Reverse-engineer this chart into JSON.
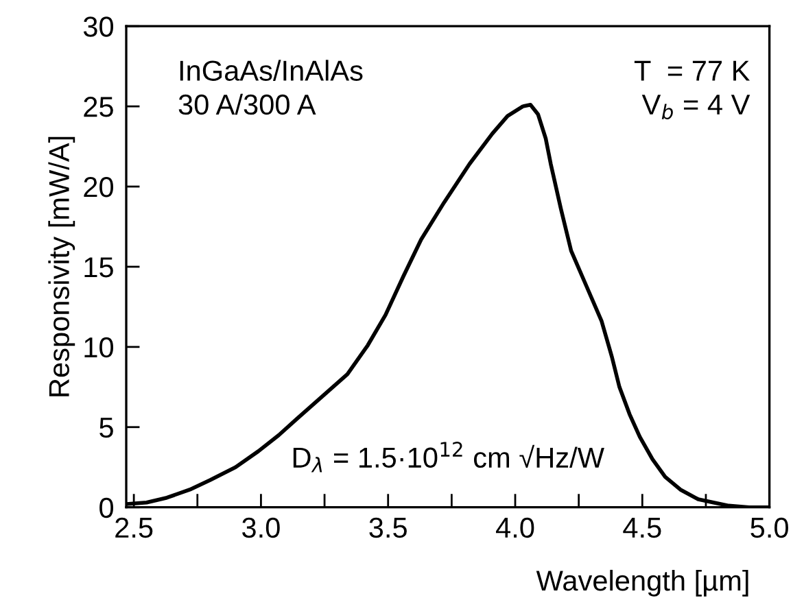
{
  "chart_data": {
    "type": "line",
    "xlabel": "Wavelength [µm]",
    "ylabel": "Responsivity [mW/A]",
    "annotations": [
      "InGaAs/InAlAs\n30 A/300 A",
      "T  = 77 K\nV$_{b}$ = 4 V",
      "D$_{λ}$ = 1.5·10$^{12}$ cm √Hz/W"
    ],
    "xlim": [
      2.47,
      5.0
    ],
    "ylim": [
      0,
      30
    ],
    "xticks": [
      2.5,
      {
        "value": 2.75,
        "label": null
      },
      {
        "value": 3,
        "label": "3.0"
      },
      {
        "value": 3.25,
        "label": null
      },
      3.5,
      {
        "value": 3.75,
        "label": null
      },
      {
        "value": 4,
        "label": "4.0"
      },
      {
        "value": 4.25,
        "label": null
      },
      4.5,
      {
        "value": 4.75,
        "label": null
      },
      {
        "value": 5,
        "label": "5.0"
      }
    ],
    "yticks": [
      0,
      5,
      10,
      15,
      20,
      25,
      30
    ],
    "grid": false,
    "legend": false,
    "marker": "none",
    "line_style": "solid",
    "series": [
      {
        "color": "#000000",
        "x": [
          2.47,
          2.55,
          2.63,
          2.72,
          2.8,
          2.9,
          2.99,
          3.07,
          3.14,
          3.24,
          3.34,
          3.42,
          3.49,
          3.56,
          3.63,
          3.72,
          3.82,
          3.91,
          3.97,
          4.03,
          4.06,
          4.09,
          4.12,
          4.14,
          4.18,
          4.22,
          4.28,
          4.34,
          4.38,
          4.41,
          4.45,
          4.49,
          4.54,
          4.59,
          4.65,
          4.72,
          4.78,
          4.84,
          4.92,
          4.99
        ],
        "values": [
          0.2,
          0.3,
          0.6,
          1.1,
          1.7,
          2.5,
          3.5,
          4.5,
          5.5,
          6.9,
          8.3,
          10.1,
          12.0,
          14.4,
          16.7,
          19.0,
          21.4,
          23.3,
          24.4,
          25.0,
          25.1,
          24.5,
          23.0,
          21.4,
          18.6,
          16.0,
          13.8,
          11.6,
          9.4,
          7.5,
          5.8,
          4.4,
          3.0,
          1.9,
          1.1,
          0.5,
          0.3,
          0.1,
          0.0,
          0.0
        ]
      }
    ]
  }
}
